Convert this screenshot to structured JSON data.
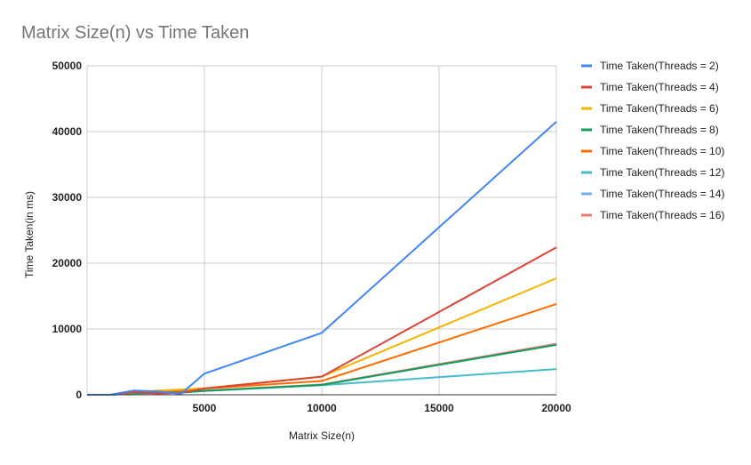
{
  "chart_data": {
    "type": "line",
    "title": "Matrix Size(n) vs Time Taken",
    "xlabel": "Matrix Size(n)",
    "ylabel": "Time Taken(in ms)",
    "xlim": [
      0,
      20000
    ],
    "ylim": [
      0,
      50000
    ],
    "x_ticks": [
      5000,
      10000,
      15000,
      20000
    ],
    "y_ticks": [
      0,
      10000,
      20000,
      30000,
      40000,
      50000
    ],
    "grid": true,
    "legend_position": "right",
    "x": [
      0,
      1000,
      2000,
      3000,
      4000,
      5000,
      10000,
      20000
    ],
    "series": [
      {
        "name": "Time Taken(Threads = 2)",
        "color": "#4285f4",
        "values": [
          0,
          10,
          650,
          500,
          150,
          3200,
          9400,
          41500
        ]
      },
      {
        "name": "Time Taken(Threads = 4)",
        "color": "#db4437",
        "values": [
          0,
          10,
          400,
          200,
          300,
          950,
          2750,
          22400
        ]
      },
      {
        "name": "Time Taken(Threads = 6)",
        "color": "#f4b400",
        "values": [
          0,
          10,
          350,
          650,
          800,
          1000,
          2750,
          17700
        ]
      },
      {
        "name": "Time Taken(Threads = 8)",
        "color": "#0f9d58",
        "values": [
          0,
          5,
          250,
          300,
          350,
          600,
          1500,
          7600
        ]
      },
      {
        "name": "Time Taken(Threads = 10)",
        "color": "#ff6d01",
        "values": [
          0,
          5,
          300,
          400,
          600,
          950,
          2100,
          13800
        ]
      },
      {
        "name": "Time Taken(Threads = 12)",
        "color": "#46bdc6",
        "values": [
          0,
          5,
          200,
          250,
          300,
          600,
          1450,
          3900
        ]
      },
      {
        "name": "Time Taken(Threads = 14)",
        "color": "#7baaf7",
        "values": [
          0,
          5,
          250,
          300,
          350,
          600,
          1500,
          7600
        ]
      },
      {
        "name": "Time Taken(Threads = 16)",
        "color": "#f07b72",
        "values": [
          0,
          5,
          250,
          300,
          350,
          650,
          1550,
          7750
        ]
      }
    ]
  }
}
